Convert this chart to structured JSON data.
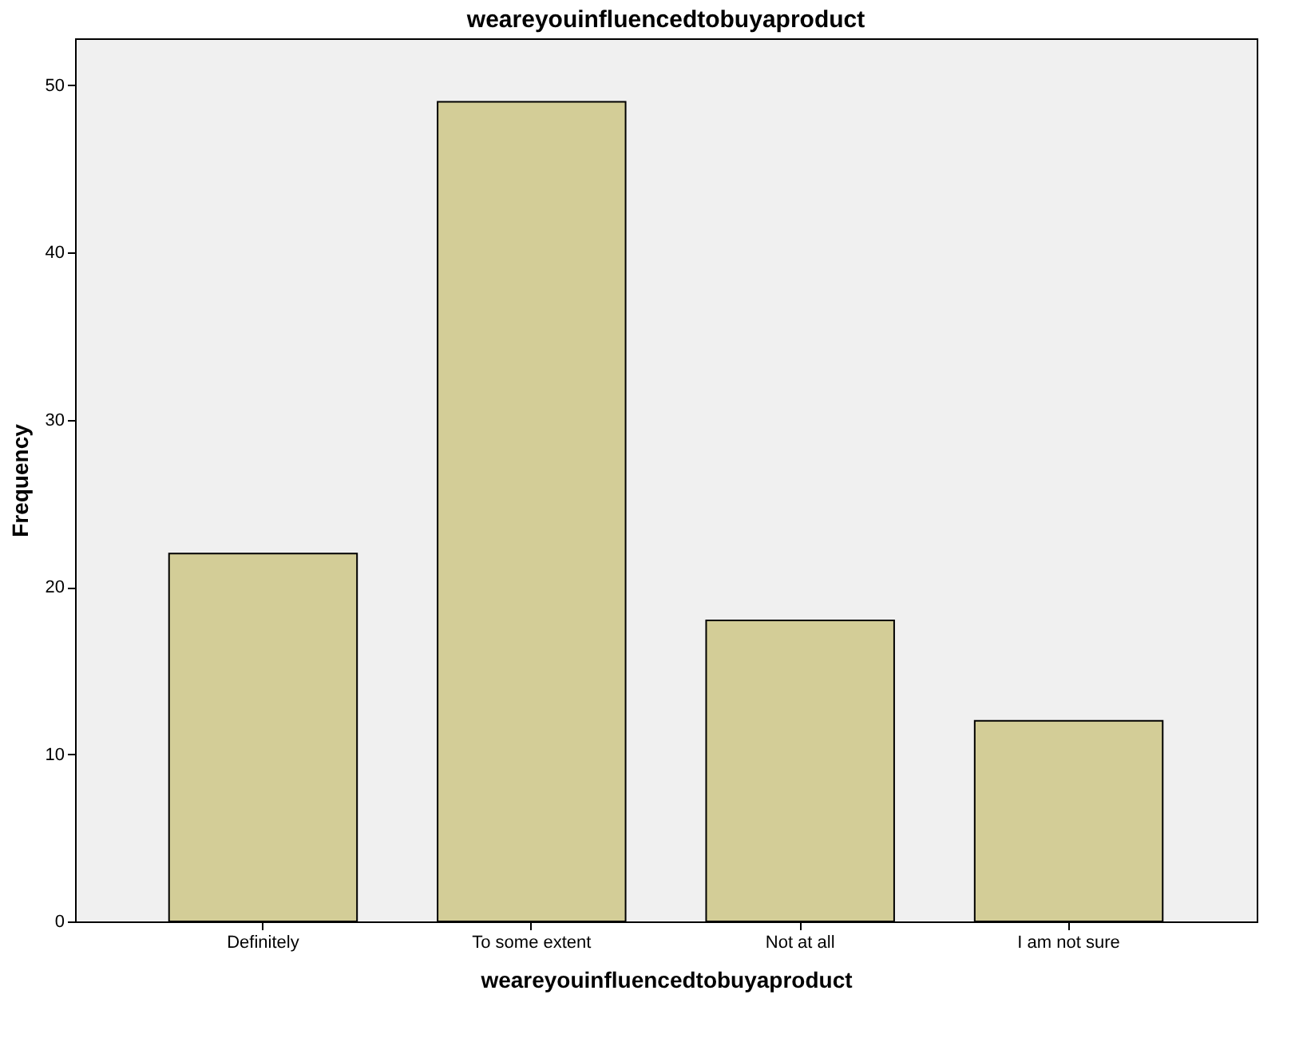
{
  "chart_data": {
    "type": "bar",
    "title": "weareyouinfluencedtobuyaproduct",
    "xlabel": "weareyouinfluencedtobuyaproduct",
    "ylabel": "Frequency",
    "categories": [
      "Definitely",
      "To some extent",
      "Not at all",
      "I am not sure"
    ],
    "values": [
      22,
      49,
      18,
      12
    ],
    "color": "#d3cd97",
    "ylim": [
      0,
      52.8
    ],
    "yticks": [
      0,
      10,
      20,
      30,
      40,
      50
    ],
    "grid": false
  }
}
